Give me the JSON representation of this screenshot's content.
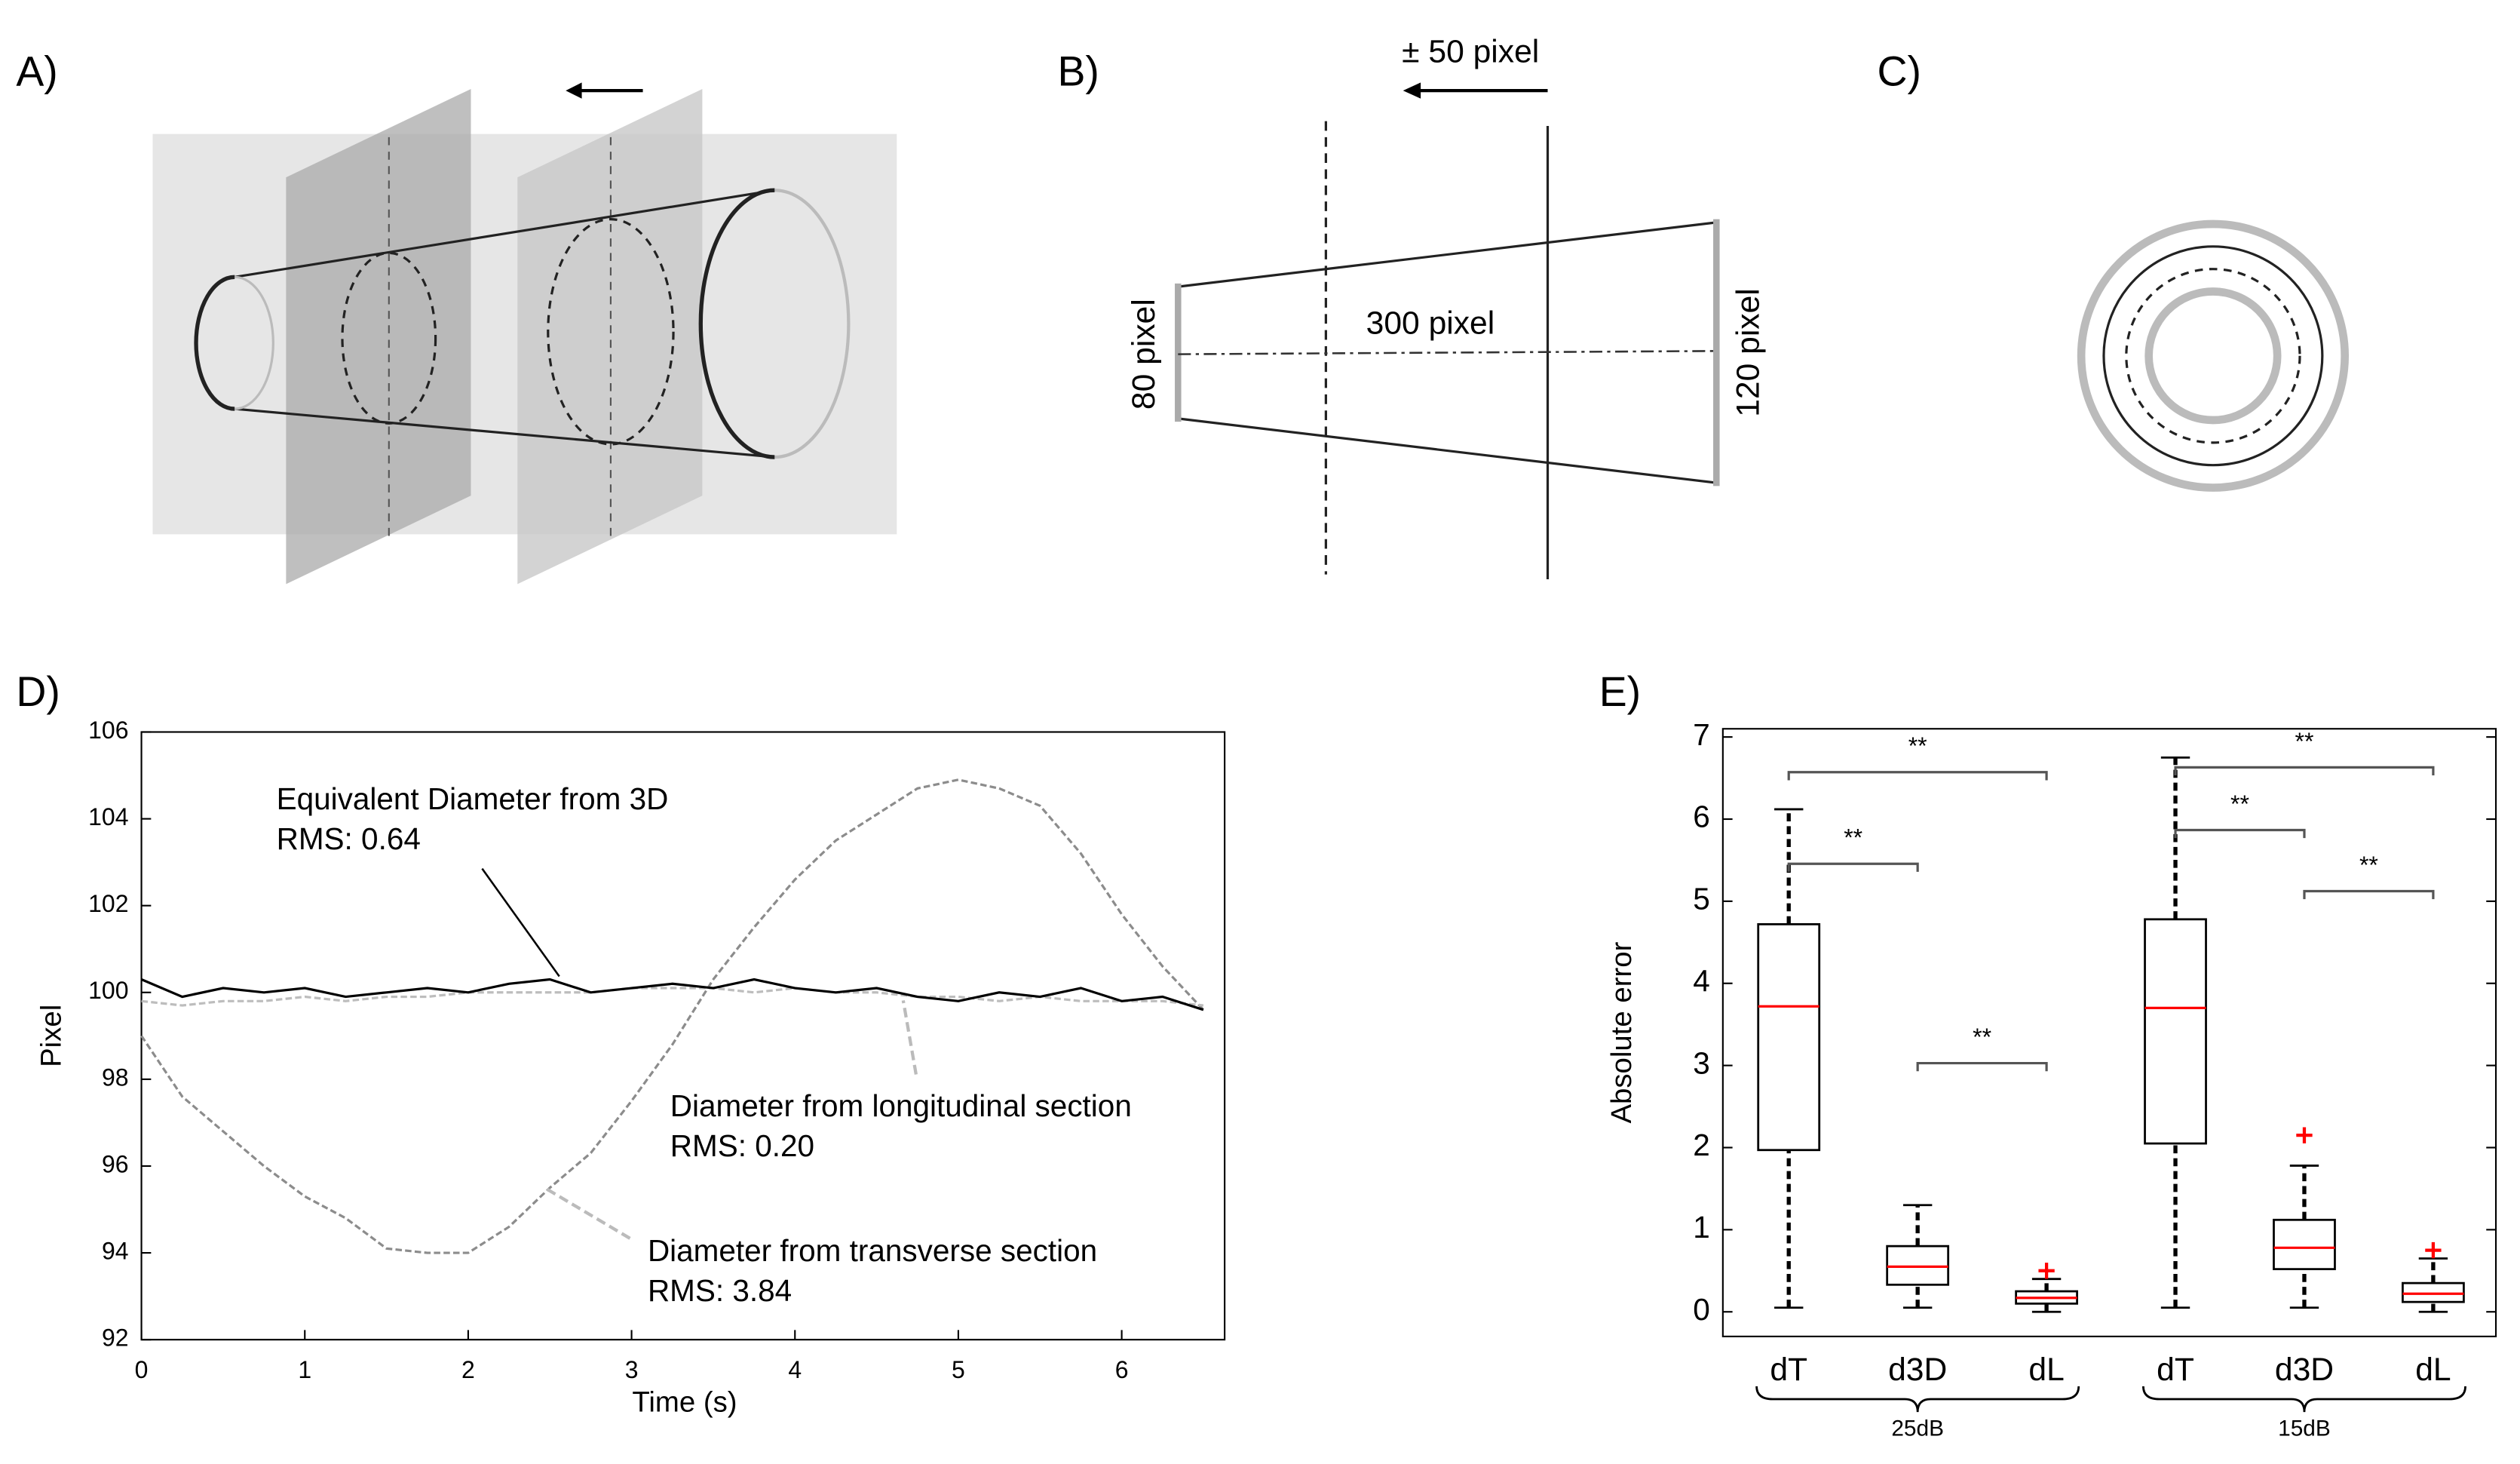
{
  "panel_labels": [
    "A)",
    "B)",
    "C)",
    "D)",
    "E)"
  ],
  "diagram_b": {
    "shift": "± 50 pixel",
    "length": "300 pixel",
    "left_diameter": "80 pixel",
    "right_diameter": "120 pixel"
  },
  "chart_data": [
    {
      "type": "line",
      "xlabel": "Time (s)",
      "ylabel": "Pixel",
      "x": [
        0,
        0.25,
        0.5,
        0.75,
        1,
        1.25,
        1.5,
        1.75,
        2,
        2.25,
        2.5,
        2.75,
        3,
        3.25,
        3.5,
        3.75,
        4,
        4.25,
        4.5,
        4.75,
        5,
        5.25,
        5.5,
        5.75,
        6,
        6.25,
        6.5
      ],
      "series": [
        {
          "name": "Diameter from transverse section",
          "color": "#8c8c8c",
          "dash": true,
          "values": [
            99,
            97.6,
            96.8,
            96.0,
            95.3,
            94.8,
            94.1,
            94.0,
            94.0,
            94.6,
            95.5,
            96.3,
            97.5,
            98.8,
            100.3,
            101.5,
            102.6,
            103.5,
            104.1,
            104.7,
            104.9,
            104.7,
            104.3,
            103.2,
            101.8,
            100.6,
            99.6
          ]
        },
        {
          "name": "Diameter from longitudinal section",
          "color": "#bdbdbd",
          "dash": true,
          "values": [
            99.8,
            99.7,
            99.8,
            99.8,
            99.9,
            99.8,
            99.9,
            99.9,
            100.0,
            100.0,
            100.0,
            100.0,
            100.1,
            100.1,
            100.1,
            100.0,
            100.1,
            100.0,
            100.0,
            99.9,
            99.9,
            99.8,
            99.9,
            99.8,
            99.8,
            99.8,
            99.7
          ]
        },
        {
          "name": "Equivalent Diameter from 3D",
          "color": "#000000",
          "dash": false,
          "values": [
            100.3,
            99.9,
            100.1,
            100.0,
            100.1,
            99.9,
            100.0,
            100.1,
            100.0,
            100.2,
            100.3,
            100.0,
            100.1,
            100.2,
            100.1,
            100.3,
            100.1,
            100.0,
            100.1,
            99.9,
            99.8,
            100.0,
            99.9,
            100.1,
            99.8,
            99.9,
            99.6
          ]
        }
      ],
      "annotations": [
        [
          "Equivalent Diameter from 3D",
          "RMS: 0.64"
        ],
        [
          "Diameter from longitudinal section",
          "RMS: 0.20"
        ],
        [
          "Diameter from transverse section",
          "RMS: 3.84"
        ]
      ],
      "xlim": [
        0,
        6.63
      ],
      "ylim": [
        92,
        106
      ],
      "xticks": [
        0,
        1,
        2,
        3,
        4,
        5,
        6
      ],
      "yticks": [
        92,
        94,
        96,
        98,
        100,
        102,
        104,
        106
      ]
    },
    {
      "type": "box",
      "ylabel": "Absolute error",
      "categories": [
        "dT",
        "d3D",
        "dL",
        "dT",
        "d3D",
        "dL"
      ],
      "groups": [
        "25dB",
        "15dB"
      ],
      "box_color": "#000000",
      "median_color": "#ff0000",
      "outlier_color": "#ff0000",
      "boxes": [
        {
          "whislo": 0.05,
          "q1": 1.97,
          "median": 3.72,
          "q3": 4.72,
          "whishi": 6.12,
          "outliers": []
        },
        {
          "whislo": 0.05,
          "q1": 0.33,
          "median": 0.55,
          "q3": 0.8,
          "whishi": 1.3,
          "outliers": []
        },
        {
          "whislo": 0,
          "q1": 0.1,
          "median": 0.17,
          "q3": 0.25,
          "whishi": 0.4,
          "outliers": [
            0.5
          ]
        },
        {
          "whislo": 0.05,
          "q1": 2.05,
          "median": 3.7,
          "q3": 4.78,
          "whishi": 6.75,
          "outliers": []
        },
        {
          "whislo": 0.05,
          "q1": 0.52,
          "median": 0.78,
          "q3": 1.12,
          "whishi": 1.78,
          "outliers": [
            2.15
          ]
        },
        {
          "whislo": 0,
          "q1": 0.12,
          "median": 0.22,
          "q3": 0.35,
          "whishi": 0.65,
          "outliers": [
            0.75
          ]
        }
      ],
      "significance": [
        "**",
        "**",
        "**",
        "**",
        "**",
        "**"
      ],
      "ylim": [
        -0.3,
        7.1
      ],
      "yticks": [
        0,
        1,
        2,
        3,
        4,
        5,
        6,
        7
      ]
    }
  ]
}
